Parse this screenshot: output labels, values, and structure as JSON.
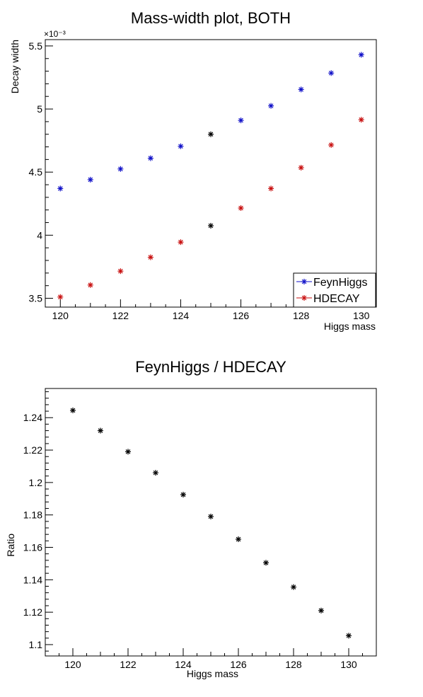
{
  "colors": {
    "FeynHiggs": "#1010c8",
    "HDECAY": "#c81010",
    "ratio": "#000000",
    "background": "#ffffff"
  },
  "chart_data": [
    {
      "type": "scatter",
      "title": "Mass-width plot, BOTH",
      "xlabel": "Higgs mass",
      "ylabel": "Decay width",
      "y_exponent_label": "×10⁻³",
      "xlim": [
        119.5,
        130.5
      ],
      "ylim": [
        3.43,
        5.55
      ],
      "xticks": [
        120,
        122,
        124,
        126,
        128,
        130
      ],
      "xtick_labels": [
        "120",
        "122",
        "124",
        "126",
        "128",
        "130"
      ],
      "yticks": [
        3.5,
        4,
        4.5,
        5,
        5.5
      ],
      "ytick_labels": [
        "3.5",
        "4",
        "4.5",
        "5",
        "5.5"
      ],
      "marker": "asterisk",
      "legend": {
        "placement": "bottom-right",
        "entries": [
          "FeynHiggs",
          "HDECAY"
        ]
      },
      "series": [
        {
          "name": "FeynHiggs",
          "color": "#1010c8",
          "x": [
            120,
            121,
            122,
            123,
            124,
            125,
            126,
            127,
            128,
            129,
            130
          ],
          "y": [
            4.37,
            4.44,
            4.525,
            4.61,
            4.705,
            4.8,
            4.91,
            5.025,
            5.155,
            5.285,
            5.43
          ]
        },
        {
          "name": "HDECAY",
          "color": "#c81010",
          "x": [
            120,
            121,
            122,
            123,
            124,
            125,
            126,
            127,
            128,
            129,
            130
          ],
          "y": [
            3.51,
            3.605,
            3.715,
            3.825,
            3.945,
            4.075,
            4.215,
            4.37,
            4.535,
            4.715,
            4.915
          ]
        }
      ],
      "overlap_point": {
        "x": 125,
        "color": "#000000"
      }
    },
    {
      "type": "scatter",
      "title": "FeynHiggs / HDECAY",
      "xlabel": "Higgs mass",
      "ylabel": "Ratio",
      "xlim": [
        119.0,
        131.0
      ],
      "ylim": [
        1.093,
        1.258
      ],
      "xticks": [
        120,
        122,
        124,
        126,
        128,
        130
      ],
      "xtick_labels": [
        "120",
        "122",
        "124",
        "126",
        "128",
        "130"
      ],
      "yticks": [
        1.1,
        1.12,
        1.14,
        1.16,
        1.18,
        1.2,
        1.22,
        1.24
      ],
      "ytick_labels": [
        "1.1",
        "1.12",
        "1.14",
        "1.16",
        "1.18",
        "1.2",
        "1.22",
        "1.24"
      ],
      "marker": "asterisk",
      "series": [
        {
          "color": "#000000",
          "x": [
            120,
            121,
            122,
            123,
            124,
            125,
            126,
            127,
            128,
            129,
            130
          ],
          "y": [
            1.2445,
            1.232,
            1.219,
            1.206,
            1.1925,
            1.179,
            1.165,
            1.1505,
            1.1355,
            1.121,
            1.1055
          ]
        }
      ]
    }
  ]
}
